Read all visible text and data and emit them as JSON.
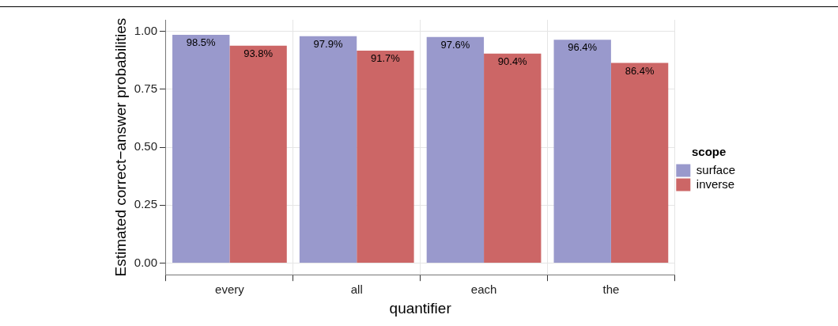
{
  "chart_data": {
    "type": "bar",
    "xlabel": "quantifier",
    "ylabel": "Estimated correct−answer probabilities",
    "legend_title": "scope",
    "categories": [
      "every",
      "all",
      "each",
      "the"
    ],
    "series": [
      {
        "name": "surface",
        "color": "#9999cc",
        "values": [
          0.985,
          0.979,
          0.976,
          0.964
        ],
        "value_labels": [
          "98.5%",
          "97.9%",
          "97.6%",
          "96.4%"
        ]
      },
      {
        "name": "inverse",
        "color": "#cc6666",
        "values": [
          0.938,
          0.917,
          0.904,
          0.864
        ],
        "value_labels": [
          "93.8%",
          "91.7%",
          "90.4%",
          "86.4%"
        ]
      }
    ],
    "ylim": [
      -0.05,
      1.05
    ],
    "yticks": [
      {
        "value": 0,
        "label": "0.00"
      },
      {
        "value": 0.25,
        "label": "0.25"
      },
      {
        "value": 0.5,
        "label": "0.50"
      },
      {
        "value": 0.75,
        "label": "0.75"
      },
      {
        "value": 1,
        "label": "1.00"
      }
    ],
    "grid": true,
    "legend": "right"
  }
}
